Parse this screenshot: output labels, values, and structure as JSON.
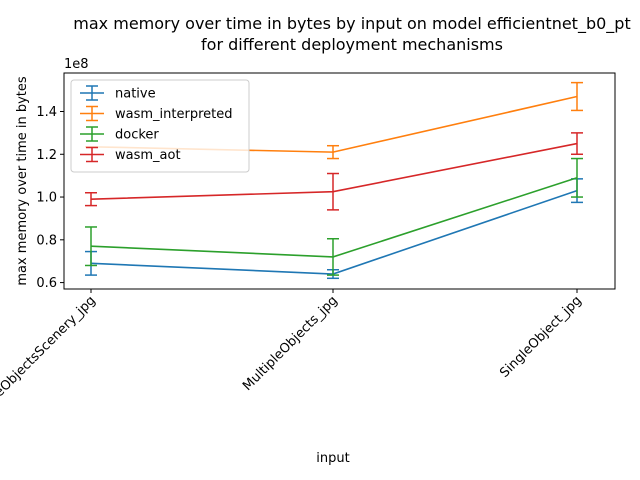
{
  "chart_data": {
    "type": "line",
    "title_line1": "max memory over time in bytes by input on model efficientnet_b0_pt",
    "title_line2": "for different deployment mechanisms",
    "xlabel": "input",
    "ylabel": "max memory over time in bytes",
    "y_offset_label": "1e8",
    "categories": [
      "MultipleObjectsScenery_jpg",
      "MultipleObjects_jpg",
      "SingleObject_jpg"
    ],
    "ylim": [
      0.57,
      1.58
    ],
    "yticks": [
      0.6,
      0.8,
      1.0,
      1.2,
      1.4
    ],
    "ytick_labels": [
      "0.6",
      "0.8",
      "1.0",
      "1.2",
      "1.4"
    ],
    "grid": false,
    "legend_position": "upper-left",
    "series": [
      {
        "name": "native",
        "color": "#1f77b4",
        "values": [
          0.69,
          0.64,
          1.03
        ],
        "errors": [
          0.055,
          0.02,
          0.055
        ]
      },
      {
        "name": "wasm_interpreted",
        "color": "#ff7f0e",
        "values": [
          1.235,
          1.21,
          1.47
        ],
        "errors": [
          0.0,
          0.03,
          0.065
        ]
      },
      {
        "name": "docker",
        "color": "#2ca02c",
        "values": [
          0.77,
          0.72,
          1.09
        ],
        "errors": [
          0.09,
          0.085,
          0.09
        ]
      },
      {
        "name": "wasm_aot",
        "color": "#d62728",
        "values": [
          0.99,
          1.025,
          1.25
        ],
        "errors": [
          0.03,
          0.085,
          0.05
        ]
      }
    ]
  }
}
